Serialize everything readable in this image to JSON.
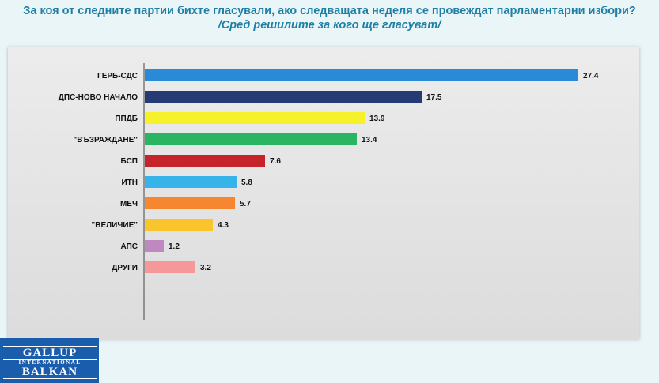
{
  "header": {
    "title": "За коя от следните партии бихте  гласували,  ако следващата неделя се провеждат парламентарни избори?",
    "subtitle": "/Сред решилите за кого ще гласуват/"
  },
  "logo": {
    "line1": "GALLUP",
    "line2": "INTERNATIONAL",
    "line3": "BALKAN"
  },
  "chart_data": {
    "type": "bar",
    "orientation": "horizontal",
    "categories": [
      "ГЕРБ-СДС",
      "ДПС-НОВО НАЧАЛО",
      "ППДБ",
      "\"ВЪЗРАЖДАНЕ\"",
      "БСП",
      "ИТН",
      "МЕЧ",
      "\"ВЕЛИЧИЕ\"",
      "АПС",
      "ДРУГИ"
    ],
    "values": [
      27.4,
      17.5,
      13.9,
      13.4,
      7.6,
      5.8,
      5.7,
      4.3,
      1.2,
      3.2
    ],
    "value_labels": [
      "27.4",
      "17.5",
      "13.9",
      "13.4",
      "7.6",
      "5.8",
      "5.7",
      "4.3",
      "1.2",
      "3.2"
    ],
    "colors": [
      "#2b8ad8",
      "#263b73",
      "#f5f22c",
      "#2ab563",
      "#c4242a",
      "#36b4ea",
      "#f78631",
      "#f9c42c",
      "#c088c0",
      "#f6979a"
    ],
    "xlim": [
      0,
      28
    ],
    "grid": false,
    "legend": "none"
  }
}
